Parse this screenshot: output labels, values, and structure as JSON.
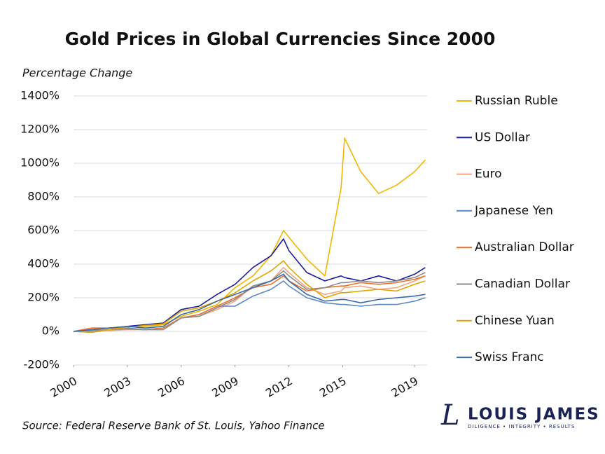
{
  "chart_data": {
    "type": "line",
    "title": "Gold Prices in Global Currencies Since 2000",
    "y_label": "Percentage Change",
    "source": "Source: Federal Reserve Bank of St. Louis, Yahoo Finance",
    "brand_mark": "L",
    "brand": "LOUIS JAMES",
    "brand_tagline": "DILIGENCE • INTEGRITY • RESULTS",
    "x": [
      2000,
      2001,
      2002,
      2003,
      2004,
      2005,
      2006,
      2007,
      2008,
      2009,
      2010,
      2011,
      2011.7,
      2012,
      2013,
      2014,
      2014.9,
      2015.1,
      2016,
      2017,
      2018,
      2019,
      2019.6
    ],
    "xlim": [
      2000,
      2019.7
    ],
    "xticks": [
      2000,
      2003,
      2006,
      2009,
      2012,
      2015,
      2019
    ],
    "ylim": [
      -200,
      1400
    ],
    "yticks": [
      {
        "value": -200,
        "label": "-200%"
      },
      {
        "value": 0,
        "label": "0%"
      },
      {
        "value": 200,
        "label": "200%"
      },
      {
        "value": 400,
        "label": "400%"
      },
      {
        "value": 600,
        "label": "600%"
      },
      {
        "value": 800,
        "label": "800%"
      },
      {
        "value": 1000,
        "label": "1000%"
      },
      {
        "value": 1200,
        "label": "1200%"
      },
      {
        "value": 1400,
        "label": "1400%"
      }
    ],
    "grid": true,
    "legend": "right",
    "series": [
      {
        "name": "Russian Ruble",
        "color": "#f2b600",
        "values": [
          0,
          10,
          20,
          30,
          30,
          40,
          90,
          120,
          160,
          260,
          330,
          450,
          600,
          560,
          430,
          330,
          850,
          1150,
          950,
          820,
          870,
          950,
          1020
        ]
      },
      {
        "name": "US Dollar",
        "color": "#1c1c9e",
        "values": [
          0,
          -5,
          10,
          30,
          40,
          50,
          130,
          150,
          220,
          280,
          380,
          450,
          550,
          480,
          350,
          300,
          330,
          320,
          300,
          330,
          300,
          340,
          380
        ]
      },
      {
        "name": "Euro",
        "color": "#f4a582",
        "values": [
          0,
          5,
          5,
          10,
          10,
          20,
          80,
          90,
          130,
          180,
          270,
          300,
          380,
          350,
          260,
          220,
          240,
          260,
          270,
          250,
          260,
          300,
          330
        ]
      },
      {
        "name": "Japanese Yen",
        "color": "#5b8ac4",
        "values": [
          0,
          10,
          20,
          20,
          10,
          20,
          80,
          100,
          150,
          150,
          210,
          250,
          300,
          270,
          200,
          170,
          160,
          160,
          150,
          160,
          160,
          180,
          200
        ]
      },
      {
        "name": "Australian Dollar",
        "color": "#e8742a",
        "values": [
          0,
          20,
          20,
          15,
          10,
          20,
          80,
          100,
          150,
          200,
          260,
          280,
          330,
          300,
          240,
          260,
          270,
          270,
          290,
          280,
          290,
          310,
          330
        ]
      },
      {
        "name": "Canadian Dollar",
        "color": "#8c8c8c",
        "values": [
          0,
          5,
          10,
          15,
          10,
          10,
          80,
          90,
          140,
          190,
          270,
          300,
          360,
          330,
          250,
          260,
          290,
          290,
          300,
          290,
          300,
          320,
          350
        ]
      },
      {
        "name": "Chinese Yuan",
        "color": "#dba800",
        "values": [
          0,
          -5,
          10,
          25,
          35,
          45,
          120,
          140,
          180,
          230,
          300,
          360,
          420,
          380,
          280,
          200,
          230,
          230,
          240,
          250,
          240,
          280,
          300
        ]
      },
      {
        "name": "Swiss Franc",
        "color": "#3a6aa5",
        "values": [
          0,
          10,
          20,
          30,
          20,
          30,
          100,
          130,
          180,
          220,
          260,
          300,
          340,
          300,
          220,
          180,
          190,
          190,
          170,
          190,
          200,
          210,
          220
        ]
      }
    ]
  }
}
